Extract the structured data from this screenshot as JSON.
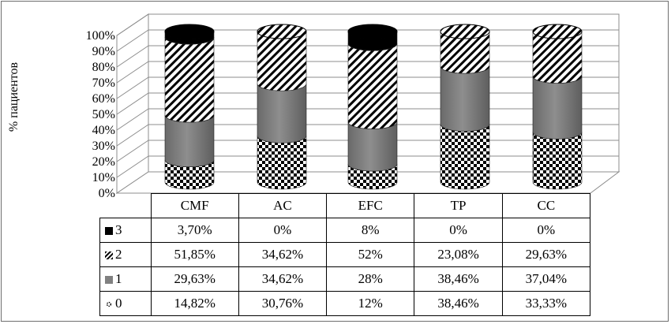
{
  "chart_data": {
    "type": "bar",
    "stacked": true,
    "normalized": true,
    "style": "3d-cylinder",
    "ylabel": "% пациентов",
    "ylim": [
      0,
      100
    ],
    "yticks": [
      "0%",
      "10%",
      "20%",
      "30%",
      "40%",
      "50%",
      "60%",
      "70%",
      "80%",
      "90%",
      "100%"
    ],
    "grid": true,
    "legend": "left-of-table",
    "categories": [
      "CMF",
      "AC",
      "EFC",
      "TP",
      "CC"
    ],
    "series": [
      {
        "name": "0",
        "pattern": "checker",
        "values": [
          14.82,
          30.76,
          12,
          38.46,
          33.33
        ],
        "labels": [
          "14,82%",
          "30,76%",
          "12%",
          "38,46%",
          "33,33%"
        ]
      },
      {
        "name": "1",
        "pattern": "gray",
        "values": [
          29.63,
          34.62,
          28,
          38.46,
          37.04
        ],
        "labels": [
          "29,63%",
          "34,62%",
          "28%",
          "38,46%",
          "37,04%"
        ]
      },
      {
        "name": "2",
        "pattern": "diagonal",
        "values": [
          51.85,
          34.62,
          52,
          23.08,
          29.63
        ],
        "labels": [
          "51,85%",
          "34,62%",
          "52%",
          "23,08%",
          "29,63%"
        ]
      },
      {
        "name": "3",
        "pattern": "black",
        "values": [
          3.7,
          0,
          8,
          0,
          0
        ],
        "labels": [
          "3,70%",
          "0%",
          "8%",
          "0%",
          "0%"
        ]
      }
    ]
  }
}
